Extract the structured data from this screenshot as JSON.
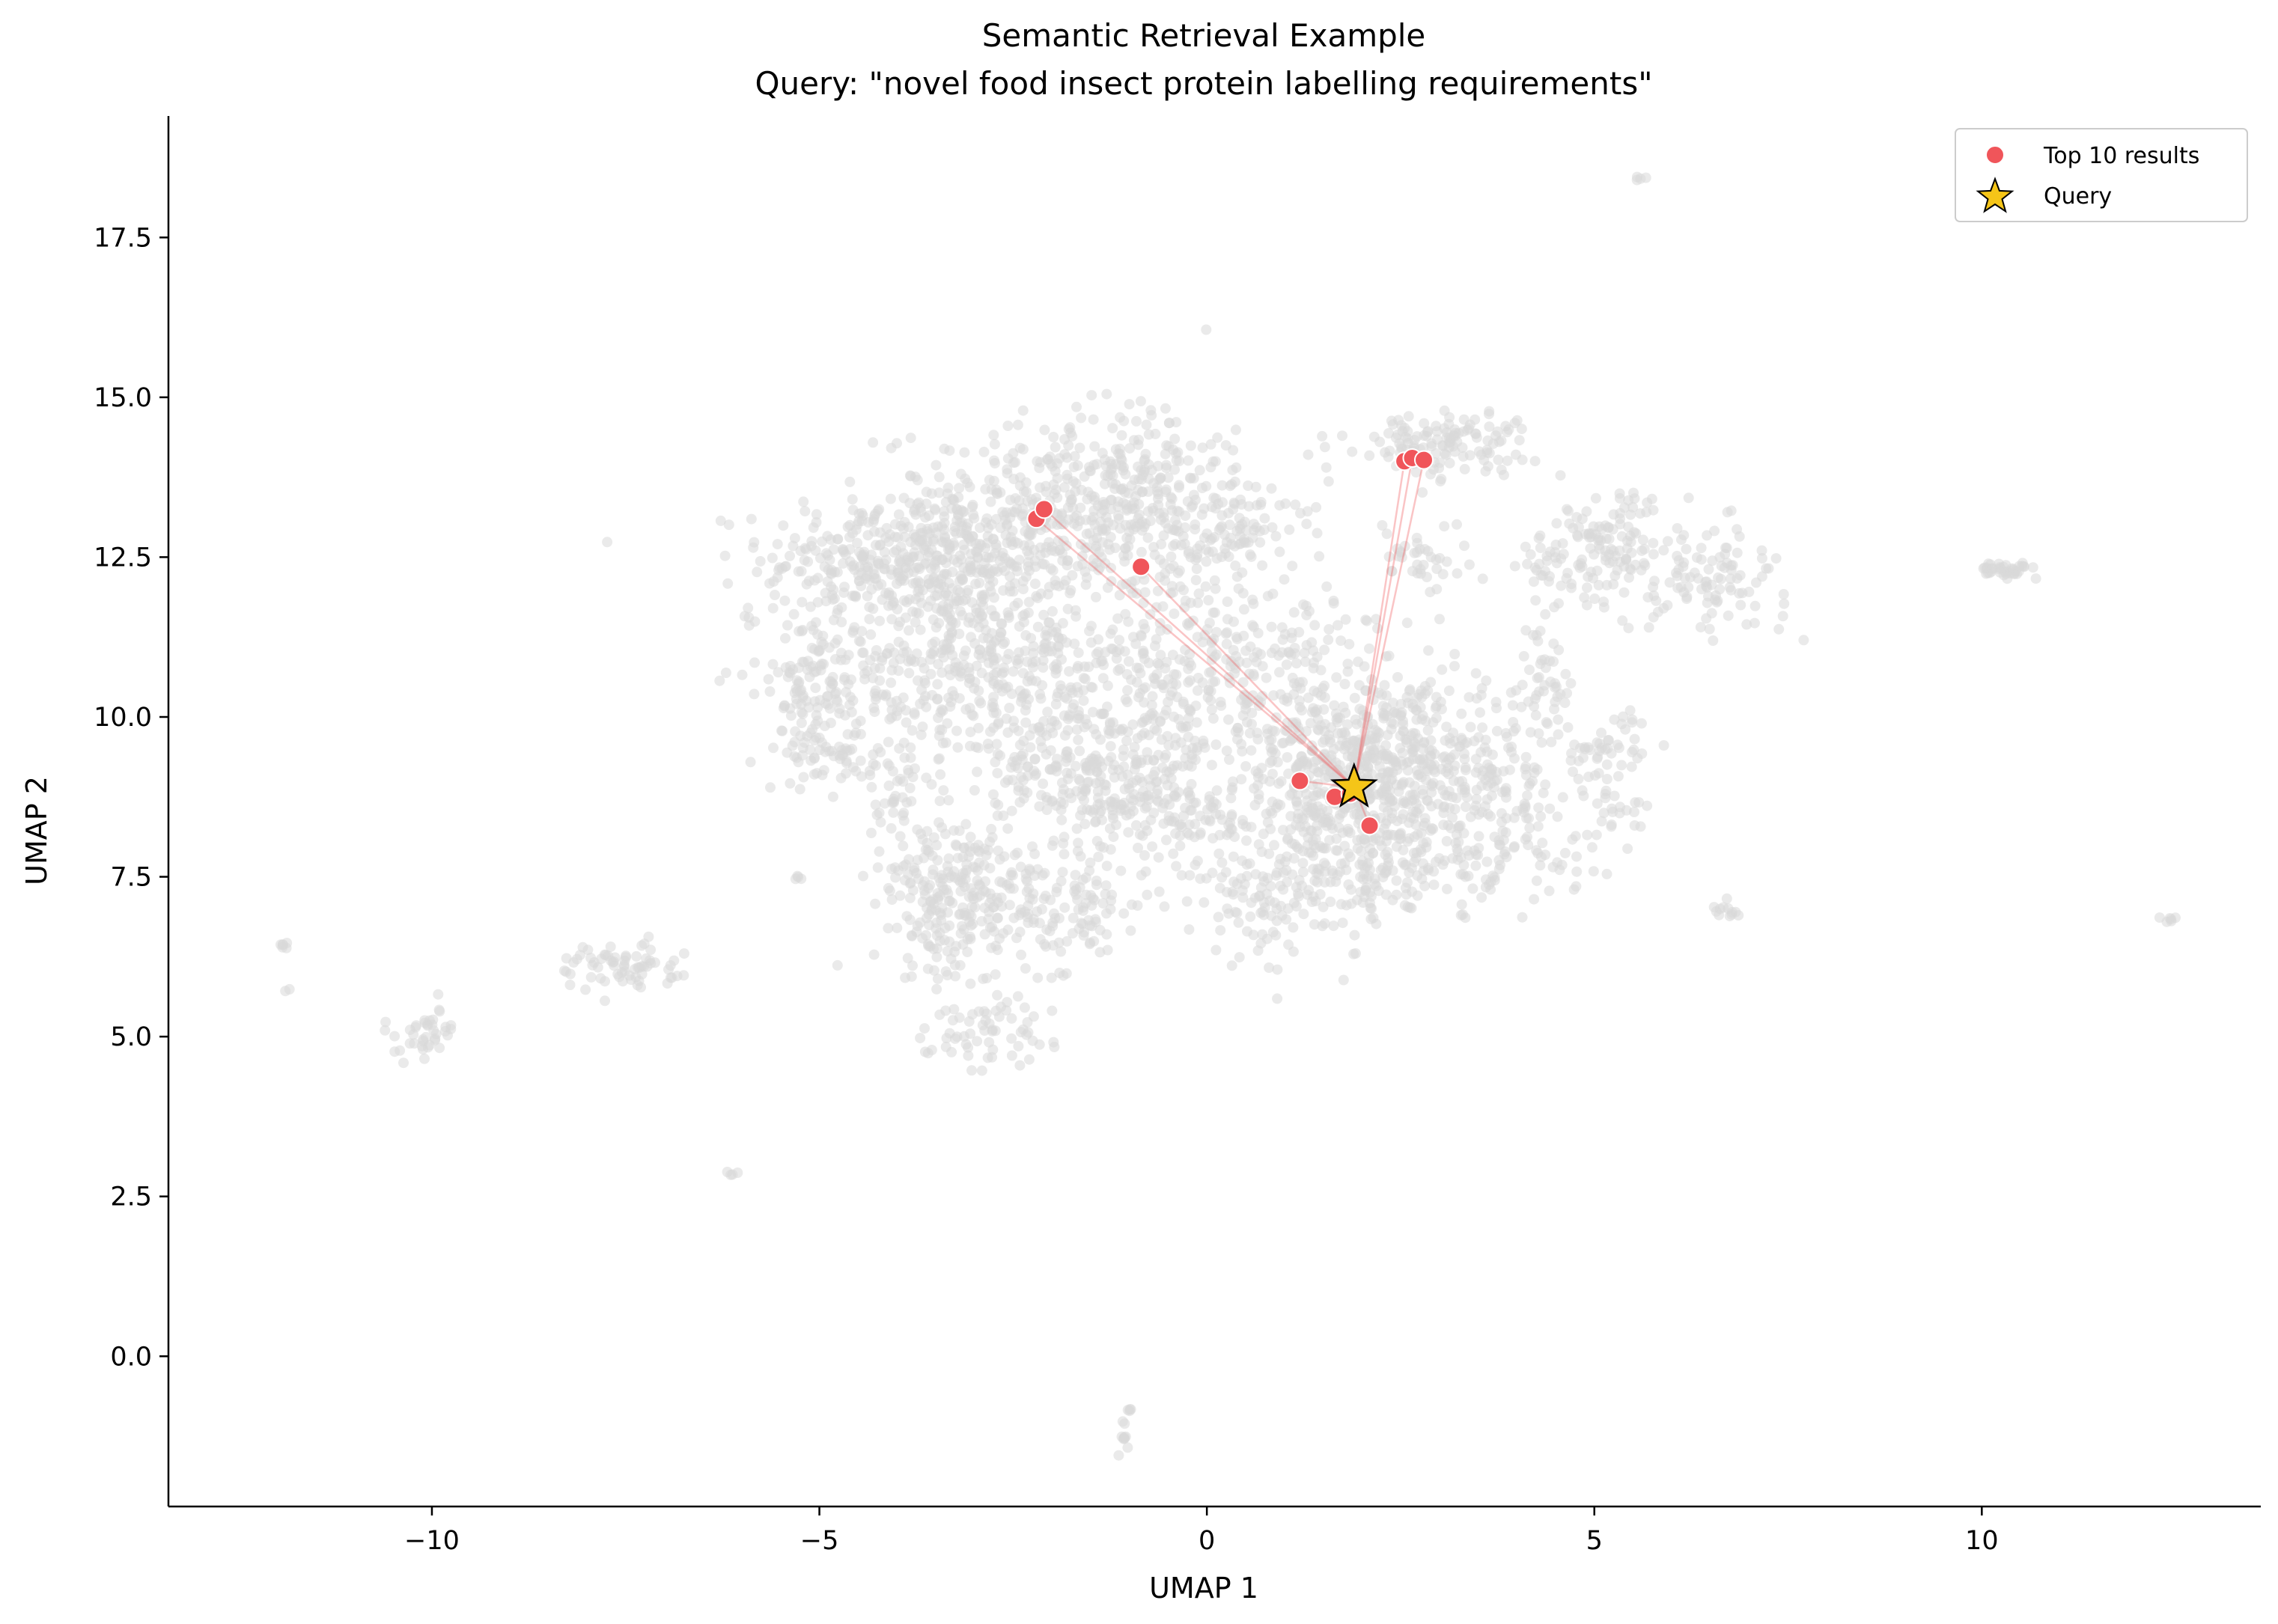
{
  "chart_data": {
    "type": "scatter",
    "title": "Semantic Retrieval Example",
    "subtitle": "Query: \"novel food insect protein labelling requirements\"",
    "xlabel": "UMAP 1",
    "ylabel": "UMAP 2",
    "xlim": [
      -13.4,
      13.6
    ],
    "ylim": [
      -2.35,
      19.4
    ],
    "xticks": [
      -10,
      -5,
      0,
      5,
      10
    ],
    "xtick_labels": [
      "−10",
      "−5",
      "0",
      "5",
      "10"
    ],
    "yticks": [
      0.0,
      2.5,
      5.0,
      7.5,
      10.0,
      12.5,
      15.0,
      17.5
    ],
    "ytick_labels": [
      "0.0",
      "2.5",
      "5.0",
      "7.5",
      "10.0",
      "12.5",
      "15.0",
      "17.5"
    ],
    "grid": false,
    "legend_position": "top-right",
    "colors": {
      "background_points": "#d9d9d9",
      "result_points": "#f0555a",
      "query_fill": "#f5c518",
      "link_lines": "#f0555a"
    },
    "query": {
      "name": "Query",
      "x": 1.9,
      "y": 8.9
    },
    "results": {
      "name": "Top 10 results",
      "x": [
        -2.2,
        -2.1,
        -0.85,
        2.55,
        2.65,
        2.8,
        1.2,
        1.65,
        1.85,
        2.1
      ],
      "y": [
        13.1,
        13.25,
        12.35,
        14.0,
        14.05,
        14.02,
        9.0,
        8.75,
        8.8,
        8.3
      ]
    },
    "background_clusters": [
      {
        "x": -3.7,
        "y": 12.5,
        "sx": 1.0,
        "sy": 0.5,
        "n": 420
      },
      {
        "x": -2.0,
        "y": 13.3,
        "sx": 1.1,
        "sy": 0.6,
        "n": 260
      },
      {
        "x": -0.8,
        "y": 12.9,
        "sx": 1.0,
        "sy": 0.6,
        "n": 200
      },
      {
        "x": -1.0,
        "y": 14.0,
        "sx": 0.6,
        "sy": 0.6,
        "n": 100
      },
      {
        "x": -3.8,
        "y": 10.8,
        "sx": 0.9,
        "sy": 0.8,
        "n": 280
      },
      {
        "x": -2.4,
        "y": 11.0,
        "sx": 0.7,
        "sy": 0.8,
        "n": 220
      },
      {
        "x": -5.0,
        "y": 10.4,
        "sx": 0.3,
        "sy": 0.6,
        "n": 90
      },
      {
        "x": -4.9,
        "y": 9.4,
        "sx": 0.3,
        "sy": 0.2,
        "n": 40
      },
      {
        "x": -1.2,
        "y": 9.0,
        "sx": 0.6,
        "sy": 0.6,
        "n": 260
      },
      {
        "x": -0.4,
        "y": 10.6,
        "sx": 0.9,
        "sy": 0.8,
        "n": 220
      },
      {
        "x": 1.0,
        "y": 10.4,
        "sx": 1.0,
        "sy": 0.9,
        "n": 200
      },
      {
        "x": 1.8,
        "y": 9.0,
        "sx": 0.8,
        "sy": 0.7,
        "n": 400
      },
      {
        "x": 2.9,
        "y": 9.2,
        "sx": 0.8,
        "sy": 0.6,
        "n": 300
      },
      {
        "x": 1.6,
        "y": 7.6,
        "sx": 0.8,
        "sy": 0.5,
        "n": 200
      },
      {
        "x": 3.6,
        "y": 7.7,
        "sx": 0.6,
        "sy": 0.3,
        "n": 80
      },
      {
        "x": 0.6,
        "y": 7.0,
        "sx": 0.3,
        "sy": 0.4,
        "n": 50
      },
      {
        "x": 3.0,
        "y": 14.3,
        "sx": 0.6,
        "sy": 0.25,
        "n": 130
      },
      {
        "x": 2.8,
        "y": 12.5,
        "sx": 0.3,
        "sy": 0.3,
        "n": 40
      },
      {
        "x": 0.5,
        "y": 12.9,
        "sx": 0.3,
        "sy": 0.5,
        "n": 50
      },
      {
        "x": -2.6,
        "y": 7.0,
        "sx": 0.6,
        "sy": 0.6,
        "n": 200
      },
      {
        "x": -3.5,
        "y": 6.9,
        "sx": 0.3,
        "sy": 0.5,
        "n": 80
      },
      {
        "x": -2.8,
        "y": 5.0,
        "sx": 0.4,
        "sy": 0.3,
        "n": 60
      },
      {
        "x": -1.5,
        "y": 7.1,
        "sx": 0.3,
        "sy": 0.3,
        "n": 40
      },
      {
        "x": -2.4,
        "y": 9.0,
        "sx": 0.3,
        "sy": 0.4,
        "n": 40
      },
      {
        "x": -3.9,
        "y": 8.6,
        "sx": 0.3,
        "sy": 0.6,
        "n": 60
      },
      {
        "x": -3.2,
        "y": 7.8,
        "sx": 0.3,
        "sy": 0.3,
        "n": 40
      },
      {
        "x": 4.8,
        "y": 12.3,
        "sx": 0.4,
        "sy": 0.5,
        "n": 80
      },
      {
        "x": 5.3,
        "y": 13.0,
        "sx": 0.3,
        "sy": 0.3,
        "n": 50
      },
      {
        "x": 6.3,
        "y": 12.2,
        "sx": 0.6,
        "sy": 0.4,
        "n": 120
      },
      {
        "x": 5.2,
        "y": 9.5,
        "sx": 0.3,
        "sy": 0.3,
        "n": 50
      },
      {
        "x": 4.4,
        "y": 10.6,
        "sx": 0.2,
        "sy": 0.5,
        "n": 40
      },
      {
        "x": 5.3,
        "y": 8.5,
        "sx": 0.2,
        "sy": 0.2,
        "n": 20
      },
      {
        "x": 4.2,
        "y": 8.4,
        "sx": 0.3,
        "sy": 0.3,
        "n": 30
      },
      {
        "x": 6.7,
        "y": 7.0,
        "sx": 0.1,
        "sy": 0.1,
        "n": 12
      },
      {
        "x": 10.3,
        "y": 12.3,
        "sx": 0.2,
        "sy": 0.05,
        "n": 40
      },
      {
        "x": 12.4,
        "y": 6.85,
        "sx": 0.04,
        "sy": 0.04,
        "n": 6
      },
      {
        "x": 5.6,
        "y": 18.4,
        "sx": 0.03,
        "sy": 0.03,
        "n": 4
      },
      {
        "x": -7.6,
        "y": 6.1,
        "sx": 0.4,
        "sy": 0.2,
        "n": 70
      },
      {
        "x": -10.1,
        "y": 5.0,
        "sx": 0.25,
        "sy": 0.2,
        "n": 40
      },
      {
        "x": -11.9,
        "y": 6.4,
        "sx": 0.04,
        "sy": 0.05,
        "n": 6
      },
      {
        "x": -11.85,
        "y": 5.75,
        "sx": 0.02,
        "sy": 0.02,
        "n": 2
      },
      {
        "x": -6.1,
        "y": 2.85,
        "sx": 0.04,
        "sy": 0.03,
        "n": 4
      },
      {
        "x": -1.05,
        "y": -1.2,
        "sx": 0.05,
        "sy": 0.15,
        "n": 10
      },
      {
        "x": -1.0,
        "y": -0.8,
        "sx": 0.03,
        "sy": 0.05,
        "n": 4
      },
      {
        "x": -5.9,
        "y": 11.5,
        "sx": 0.04,
        "sy": 0.04,
        "n": 4
      },
      {
        "x": -5.3,
        "y": 7.5,
        "sx": 0.05,
        "sy": 0.03,
        "n": 4
      },
      {
        "x": -3.6,
        "y": 4.75,
        "sx": 0.03,
        "sy": 0.03,
        "n": 3
      },
      {
        "x": 3.3,
        "y": 6.9,
        "sx": 0.03,
        "sy": 0.03,
        "n": 3
      },
      {
        "x": 2.6,
        "y": 7.0,
        "sx": 0.03,
        "sy": 0.03,
        "n": 3
      },
      {
        "x": 0.1,
        "y": 8.4,
        "sx": 0.3,
        "sy": 0.3,
        "n": 40
      }
    ]
  }
}
